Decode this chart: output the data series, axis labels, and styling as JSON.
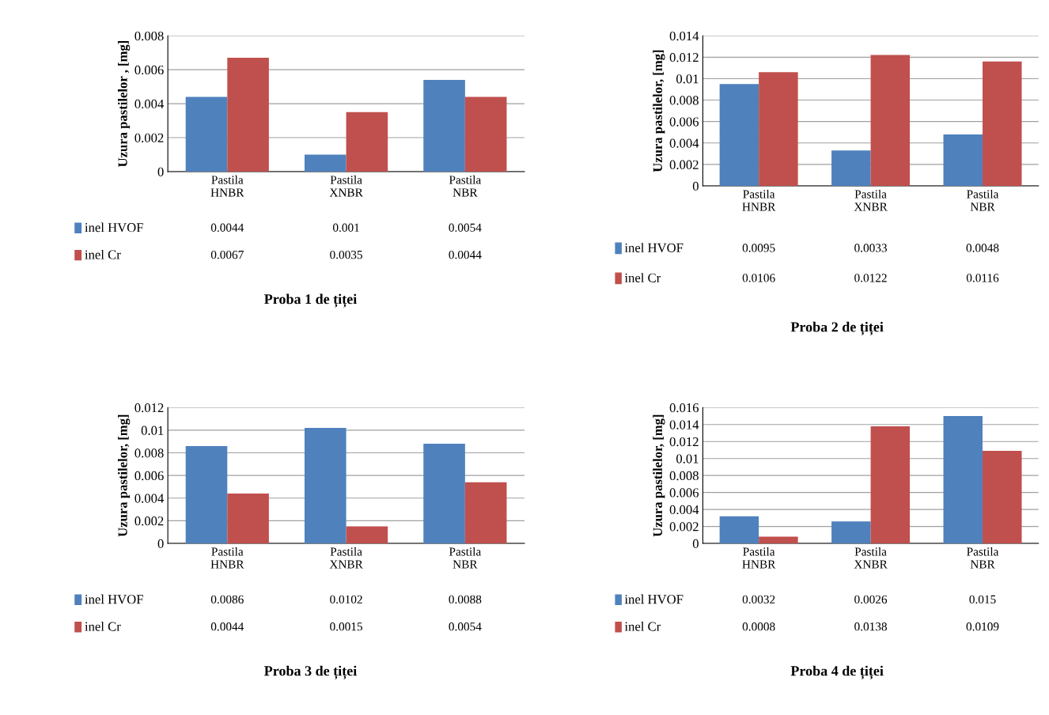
{
  "chart_data": [
    {
      "type": "bar",
      "title": "Proba 1 de țiței",
      "ylabel": "Uzura pastilelor , [mg]",
      "categories": [
        "Pastila\nHNBR",
        "Pastila\nXNBR",
        "Pastila\nNBR"
      ],
      "series": [
        {
          "name": "inel HVOF",
          "color": "#4f81bd",
          "values": [
            0.0044,
            0.001,
            0.0054
          ]
        },
        {
          "name": "inel Cr",
          "color": "#c0504d",
          "values": [
            0.0067,
            0.0035,
            0.0044
          ]
        }
      ],
      "ylim": [
        0,
        0.008
      ],
      "yticks": [
        0,
        0.002,
        0.004,
        0.006,
        0.008
      ],
      "grid": "y",
      "legend": "bottom",
      "data_labels": true
    },
    {
      "type": "bar",
      "title": "Proba 2 de țiței",
      "ylabel": "Uzura pastilelor, [mg]",
      "categories": [
        "Pastila\nHNBR",
        "Pastila\nXNBR",
        "Pastila\nNBR"
      ],
      "series": [
        {
          "name": "inel HVOF",
          "color": "#4f81bd",
          "values": [
            0.0095,
            0.0033,
            0.0048
          ]
        },
        {
          "name": "inel Cr",
          "color": "#c0504d",
          "values": [
            0.0106,
            0.0122,
            0.0116
          ]
        }
      ],
      "ylim": [
        0,
        0.014
      ],
      "yticks": [
        0,
        0.002,
        0.004,
        0.006,
        0.008,
        0.01,
        0.012,
        0.014
      ],
      "grid": "y",
      "legend": "bottom",
      "data_labels": true
    },
    {
      "type": "bar",
      "title": "Proba 3 de țiței",
      "ylabel": "Uzura pastilelor, [mg]",
      "categories": [
        "Pastila\nHNBR",
        "Pastila\nXNBR",
        "Pastila\nNBR"
      ],
      "series": [
        {
          "name": "inel HVOF",
          "color": "#4f81bd",
          "values": [
            0.0086,
            0.0102,
            0.0088
          ]
        },
        {
          "name": "inel Cr",
          "color": "#c0504d",
          "values": [
            0.0044,
            0.0015,
            0.0054
          ]
        }
      ],
      "ylim": [
        0,
        0.012
      ],
      "yticks": [
        0,
        0.002,
        0.004,
        0.006,
        0.008,
        0.01,
        0.012
      ],
      "grid": "y",
      "legend": "bottom",
      "data_labels": true
    },
    {
      "type": "bar",
      "title": "Proba 4 de țiței",
      "ylabel": "Uzura pastilelor, [mg]",
      "categories": [
        "Pastila\nHNBR",
        "Pastila\nXNBR",
        "Pastila\nNBR"
      ],
      "series": [
        {
          "name": "inel HVOF",
          "color": "#4f81bd",
          "values": [
            0.0032,
            0.0026,
            0.015
          ]
        },
        {
          "name": "inel Cr",
          "color": "#c0504d",
          "values": [
            0.0008,
            0.0138,
            0.0109
          ]
        }
      ],
      "ylim": [
        0,
        0.016
      ],
      "yticks": [
        0,
        0.002,
        0.004,
        0.006,
        0.008,
        0.01,
        0.012,
        0.014,
        0.016
      ],
      "grid": "y",
      "legend": "bottom",
      "data_labels": true
    }
  ]
}
